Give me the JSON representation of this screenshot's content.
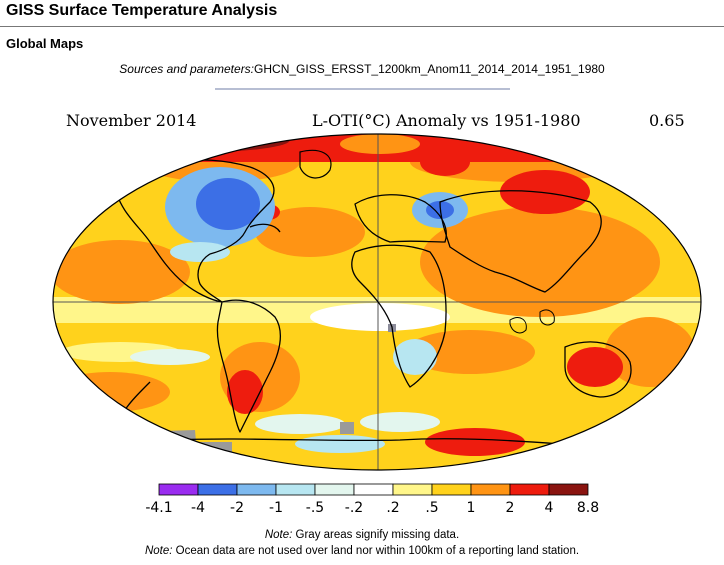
{
  "page": {
    "title": "GISS Surface Temperature Analysis",
    "subtitle": "Global Maps",
    "sources_label": "Sources and parameters:",
    "sources_value": "GHCN_GISS_ERSST_1200km_Anom11_2014_2014_1951_1980"
  },
  "map": {
    "date": "November 2014",
    "description": "L-OTI(°C) Anomaly vs 1951-1980",
    "global_mean": "0.65",
    "legend": {
      "labels": [
        "-4.1",
        "-4",
        "-2",
        "-1",
        "-.5",
        "-.2",
        ".2",
        ".5",
        "1",
        "2",
        "4",
        "8.8"
      ],
      "colors": [
        "#9a2cf0",
        "#3c6fe6",
        "#7db9ef",
        "#b7e6f1",
        "#e3f6ee",
        "#ffffff",
        "#fff68a",
        "#ffd21c",
        "#ff9414",
        "#ee1c0e",
        "#8a1410"
      ]
    }
  },
  "notes": {
    "note1_label": "Note:",
    "note1_text": " Gray areas signify missing data.",
    "note2_label": "Note:",
    "note2_text": " Ocean data are not used over land nor within 100km of a reporting land station."
  }
}
